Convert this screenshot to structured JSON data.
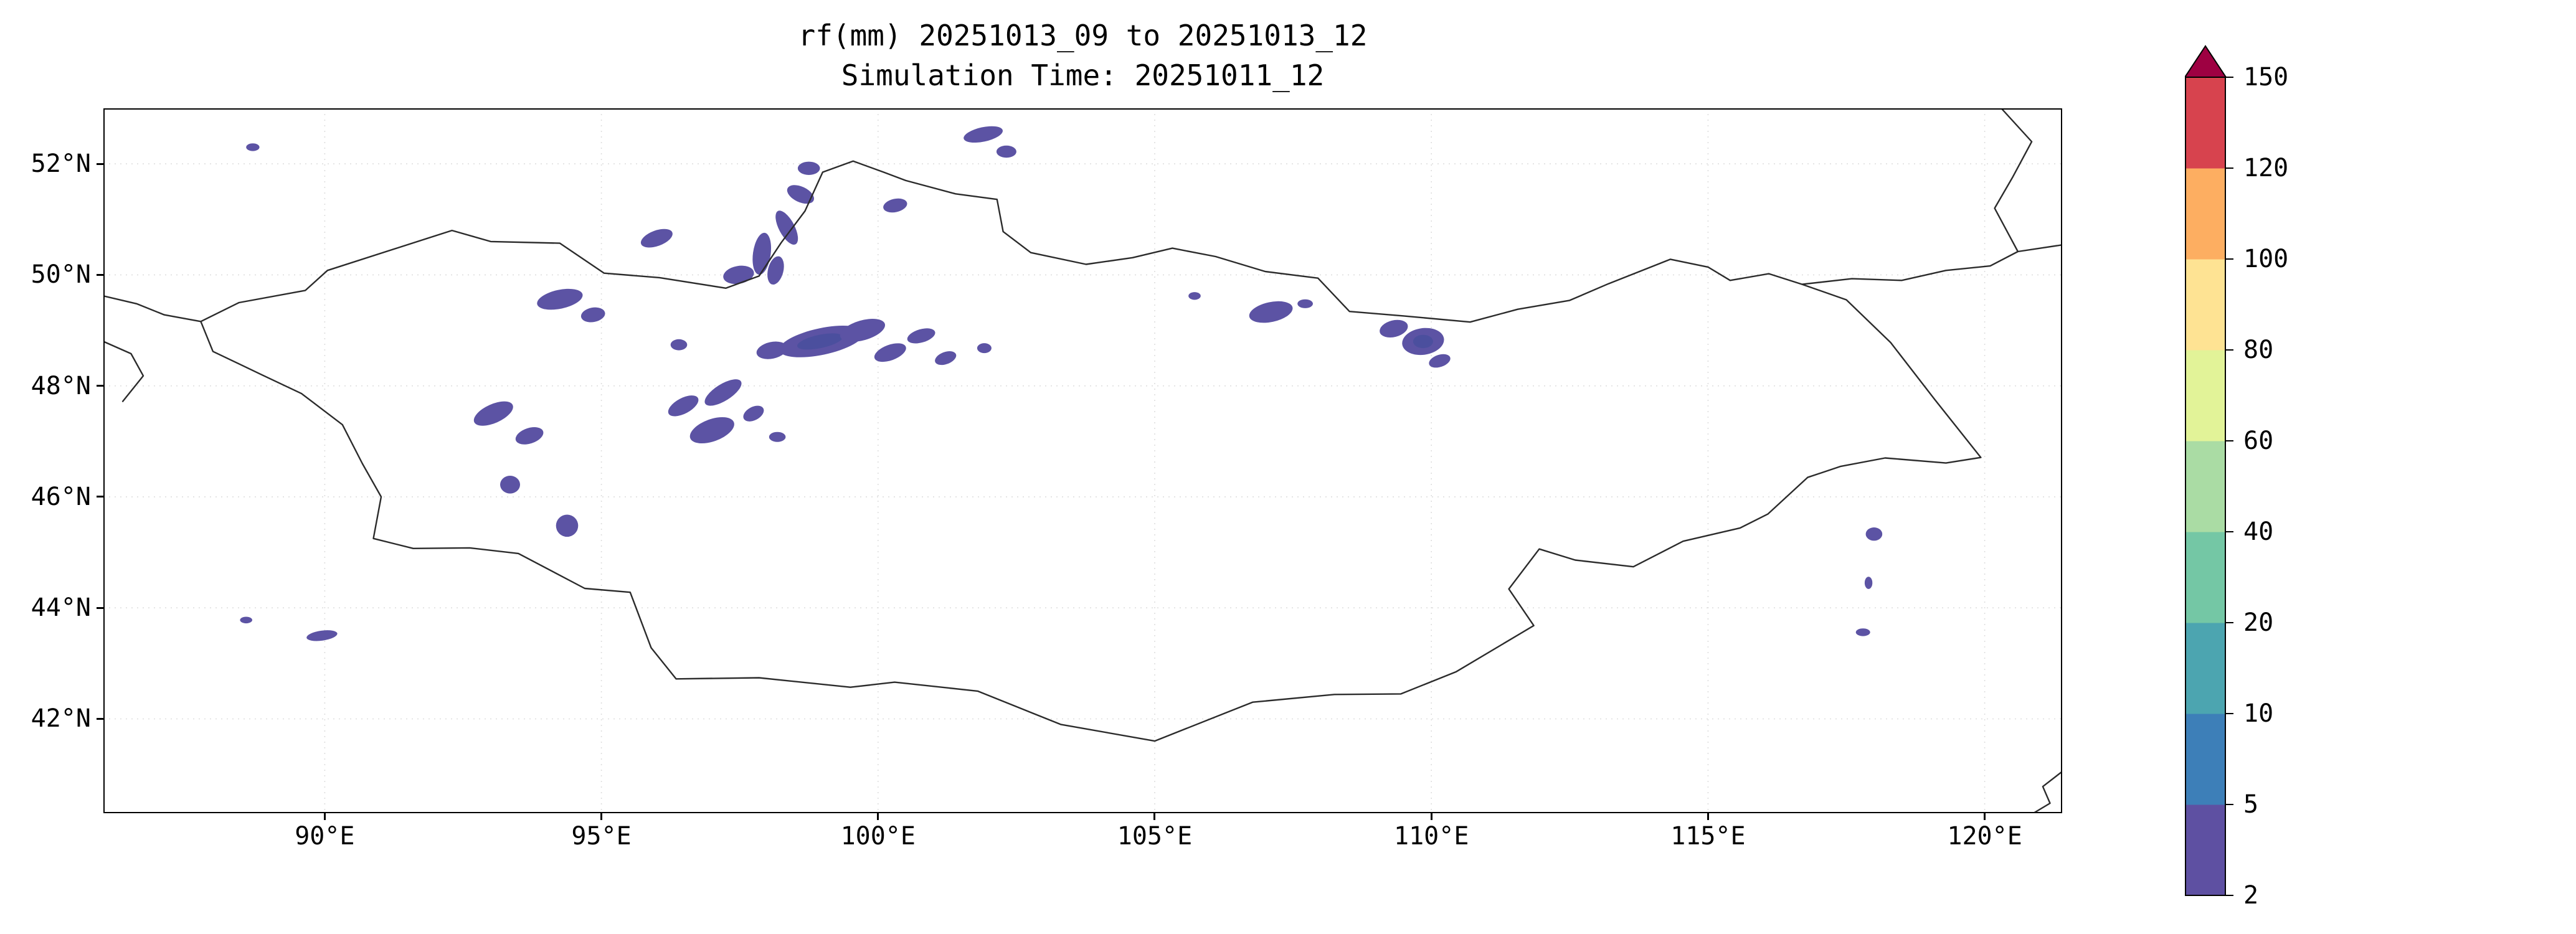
{
  "chart_data": {
    "type": "heatmap",
    "title": "rf(mm) 20251013_09 to 20251013_12",
    "subtitle": "Simulation Time: 20251011_12",
    "grid": true,
    "grid_color": "#dedede",
    "x_axis": {
      "tick_values": [
        90,
        95,
        100,
        105,
        110,
        115,
        120
      ],
      "tick_labels": [
        "90°E",
        "95°E",
        "100°E",
        "105°E",
        "110°E",
        "115°E",
        "120°E"
      ]
    },
    "y_axis": {
      "tick_values": [
        52,
        50,
        48,
        46,
        44,
        42
      ],
      "tick_labels": [
        "52°N",
        "50°N",
        "48°N",
        "46°N",
        "44°N",
        "42°N"
      ]
    },
    "extent": {
      "lon_min": 86.0,
      "lon_max": 121.4,
      "lat_min": 40.3,
      "lat_max": 53.0
    },
    "colorbar": {
      "orientation": "vertical",
      "extend": "max",
      "levels": [
        2,
        5,
        10,
        20,
        40,
        60,
        80,
        100,
        120,
        150
      ],
      "tick_labels": [
        "2",
        "5",
        "10",
        "20",
        "40",
        "60",
        "80",
        "100",
        "120",
        "150"
      ],
      "segment_colors": [
        "#5e50a2",
        "#3d7fb8",
        "#4ca5b0",
        "#74c7a5",
        "#aadca4",
        "#e2f398",
        "#fee393",
        "#fdae61",
        "#d7434e"
      ],
      "over_color": "#9e0142"
    },
    "map": {
      "border_color": "#2b2b2b",
      "patch_color": "#5c53a4",
      "borders": [
        {
          "name": "mongolia",
          "closed": true,
          "points": [
            [
              87.76,
              49.16
            ],
            [
              88.45,
              49.5
            ],
            [
              89.65,
              49.72
            ],
            [
              90.05,
              50.08
            ],
            [
              91.3,
              50.48
            ],
            [
              92.3,
              50.8
            ],
            [
              93.0,
              50.6
            ],
            [
              94.25,
              50.57
            ],
            [
              95.05,
              50.03
            ],
            [
              96.05,
              49.95
            ],
            [
              97.25,
              49.76
            ],
            [
              97.85,
              49.98
            ],
            [
              98.25,
              50.58
            ],
            [
              98.68,
              51.15
            ],
            [
              99.0,
              51.85
            ],
            [
              99.55,
              52.05
            ],
            [
              100.1,
              51.85
            ],
            [
              100.5,
              51.7
            ],
            [
              101.4,
              51.46
            ],
            [
              102.15,
              51.36
            ],
            [
              102.26,
              50.78
            ],
            [
              102.76,
              50.4
            ],
            [
              103.76,
              50.19
            ],
            [
              104.6,
              50.31
            ],
            [
              105.32,
              50.48
            ],
            [
              106.1,
              50.33
            ],
            [
              107.0,
              50.06
            ],
            [
              107.95,
              49.94
            ],
            [
              108.52,
              49.34
            ],
            [
              109.5,
              49.26
            ],
            [
              110.7,
              49.15
            ],
            [
              111.56,
              49.38
            ],
            [
              112.5,
              49.54
            ],
            [
              113.2,
              49.84
            ],
            [
              114.32,
              50.28
            ],
            [
              115.0,
              50.14
            ],
            [
              115.4,
              49.9
            ],
            [
              116.1,
              50.02
            ],
            [
              116.7,
              49.83
            ],
            [
              117.5,
              49.55
            ],
            [
              118.3,
              48.78
            ],
            [
              119.1,
              47.75
            ],
            [
              119.93,
              46.71
            ],
            [
              119.3,
              46.61
            ],
            [
              118.2,
              46.7
            ],
            [
              117.4,
              46.55
            ],
            [
              116.8,
              46.35
            ],
            [
              116.08,
              45.69
            ],
            [
              115.58,
              45.44
            ],
            [
              114.55,
              45.2
            ],
            [
              113.65,
              44.74
            ],
            [
              112.6,
              44.86
            ],
            [
              111.95,
              45.06
            ],
            [
              111.4,
              44.34
            ],
            [
              111.85,
              43.68
            ],
            [
              110.45,
              42.85
            ],
            [
              109.45,
              42.45
            ],
            [
              108.25,
              42.44
            ],
            [
              106.77,
              42.3
            ],
            [
              105.0,
              41.6
            ],
            [
              103.3,
              41.9
            ],
            [
              101.8,
              42.5
            ],
            [
              100.3,
              42.66
            ],
            [
              99.5,
              42.57
            ],
            [
              97.85,
              42.74
            ],
            [
              96.35,
              42.72
            ],
            [
              95.9,
              43.28
            ],
            [
              95.52,
              44.28
            ],
            [
              94.7,
              44.35
            ],
            [
              93.5,
              44.98
            ],
            [
              92.62,
              45.08
            ],
            [
              91.6,
              45.07
            ],
            [
              90.88,
              45.25
            ],
            [
              91.02,
              46.0
            ],
            [
              90.68,
              46.6
            ],
            [
              90.32,
              47.3
            ],
            [
              89.58,
              47.86
            ],
            [
              88.86,
              48.2
            ],
            [
              87.98,
              48.62
            ]
          ]
        },
        {
          "name": "border-west-1",
          "closed": false,
          "points": [
            [
              86.0,
              49.62
            ],
            [
              86.6,
              49.48
            ],
            [
              87.1,
              49.28
            ],
            [
              87.76,
              49.16
            ]
          ]
        },
        {
          "name": "border-west-2",
          "closed": false,
          "points": [
            [
              86.0,
              48.8
            ],
            [
              86.5,
              48.58
            ],
            [
              86.72,
              48.18
            ],
            [
              86.35,
              47.72
            ]
          ]
        },
        {
          "name": "border-northeast",
          "closed": false,
          "points": [
            [
              116.7,
              49.83
            ],
            [
              117.6,
              49.93
            ],
            [
              118.5,
              49.9
            ],
            [
              119.3,
              50.08
            ],
            [
              120.1,
              50.16
            ],
            [
              120.6,
              50.42
            ],
            [
              121.4,
              50.54
            ]
          ]
        },
        {
          "name": "border-top-right",
          "closed": false,
          "points": [
            [
              120.3,
              53.0
            ],
            [
              120.85,
              52.4
            ],
            [
              120.5,
              51.75
            ],
            [
              120.18,
              51.2
            ],
            [
              120.6,
              50.42
            ]
          ]
        },
        {
          "name": "border-bottom-right",
          "closed": false,
          "points": [
            [
              121.4,
              41.05
            ],
            [
              121.05,
              40.78
            ],
            [
              121.18,
              40.48
            ],
            [
              120.88,
              40.3
            ]
          ]
        }
      ],
      "precip_patches": [
        {
          "lon": 88.7,
          "lat": 52.3,
          "rx": 0.12,
          "ry": 0.07,
          "rot": 0
        },
        {
          "lon": 96.0,
          "lat": 50.66,
          "rx": 0.3,
          "ry": 0.14,
          "rot": -20
        },
        {
          "lon": 98.75,
          "lat": 51.92,
          "rx": 0.2,
          "ry": 0.12,
          "rot": 0
        },
        {
          "lon": 98.6,
          "lat": 51.45,
          "rx": 0.26,
          "ry": 0.14,
          "rot": 25
        },
        {
          "lon": 98.35,
          "lat": 50.85,
          "rx": 0.34,
          "ry": 0.14,
          "rot": 62
        },
        {
          "lon": 97.9,
          "lat": 50.38,
          "rx": 0.16,
          "ry": 0.38,
          "rot": 8
        },
        {
          "lon": 98.15,
          "lat": 50.08,
          "rx": 0.14,
          "ry": 0.26,
          "rot": 14
        },
        {
          "lon": 97.48,
          "lat": 50.0,
          "rx": 0.28,
          "ry": 0.16,
          "rot": -10
        },
        {
          "lon": 100.31,
          "lat": 51.25,
          "rx": 0.22,
          "ry": 0.12,
          "rot": -12
        },
        {
          "lon": 101.9,
          "lat": 52.53,
          "rx": 0.36,
          "ry": 0.13,
          "rot": -12
        },
        {
          "lon": 102.32,
          "lat": 52.22,
          "rx": 0.18,
          "ry": 0.11,
          "rot": 0
        },
        {
          "lon": 94.25,
          "lat": 49.56,
          "rx": 0.42,
          "ry": 0.17,
          "rot": -12
        },
        {
          "lon": 94.85,
          "lat": 49.28,
          "rx": 0.22,
          "ry": 0.13,
          "rot": -10
        },
        {
          "lon": 96.4,
          "lat": 48.74,
          "rx": 0.15,
          "ry": 0.1,
          "rot": 0
        },
        {
          "lon": 98.08,
          "lat": 48.64,
          "rx": 0.28,
          "ry": 0.15,
          "rot": -12
        },
        {
          "lon": 98.98,
          "lat": 48.8,
          "rx": 0.78,
          "ry": 0.24,
          "rot": -12
        },
        {
          "lon": 98.95,
          "lat": 48.8,
          "rx": 0.42,
          "ry": 0.12,
          "rot": -12,
          "color": "#4b4f9e"
        },
        {
          "lon": 99.72,
          "lat": 49.0,
          "rx": 0.42,
          "ry": 0.18,
          "rot": -16
        },
        {
          "lon": 100.22,
          "lat": 48.6,
          "rx": 0.3,
          "ry": 0.14,
          "rot": -20
        },
        {
          "lon": 100.78,
          "lat": 48.9,
          "rx": 0.26,
          "ry": 0.12,
          "rot": -16
        },
        {
          "lon": 101.22,
          "lat": 48.5,
          "rx": 0.2,
          "ry": 0.11,
          "rot": -20
        },
        {
          "lon": 101.92,
          "lat": 48.68,
          "rx": 0.13,
          "ry": 0.09,
          "rot": 0
        },
        {
          "lon": 93.05,
          "lat": 47.5,
          "rx": 0.38,
          "ry": 0.17,
          "rot": -24
        },
        {
          "lon": 93.7,
          "lat": 47.1,
          "rx": 0.26,
          "ry": 0.14,
          "rot": -18
        },
        {
          "lon": 96.48,
          "lat": 47.64,
          "rx": 0.3,
          "ry": 0.14,
          "rot": -28
        },
        {
          "lon": 97.2,
          "lat": 47.88,
          "rx": 0.38,
          "ry": 0.15,
          "rot": -32
        },
        {
          "lon": 97.0,
          "lat": 47.2,
          "rx": 0.42,
          "ry": 0.2,
          "rot": -20
        },
        {
          "lon": 97.75,
          "lat": 47.5,
          "rx": 0.2,
          "ry": 0.12,
          "rot": -28
        },
        {
          "lon": 98.18,
          "lat": 47.08,
          "rx": 0.15,
          "ry": 0.09,
          "rot": 0
        },
        {
          "lon": 93.35,
          "lat": 46.22,
          "rx": 0.18,
          "ry": 0.16,
          "rot": 0
        },
        {
          "lon": 94.38,
          "lat": 45.48,
          "rx": 0.2,
          "ry": 0.2,
          "rot": 0
        },
        {
          "lon": 88.58,
          "lat": 43.78,
          "rx": 0.11,
          "ry": 0.06,
          "rot": 0
        },
        {
          "lon": 89.95,
          "lat": 43.5,
          "rx": 0.28,
          "ry": 0.09,
          "rot": -8
        },
        {
          "lon": 105.72,
          "lat": 49.62,
          "rx": 0.11,
          "ry": 0.07,
          "rot": 0
        },
        {
          "lon": 107.1,
          "lat": 49.33,
          "rx": 0.4,
          "ry": 0.18,
          "rot": -12
        },
        {
          "lon": 107.72,
          "lat": 49.48,
          "rx": 0.14,
          "ry": 0.08,
          "rot": 0
        },
        {
          "lon": 109.32,
          "lat": 49.03,
          "rx": 0.26,
          "ry": 0.15,
          "rot": -14
        },
        {
          "lon": 109.85,
          "lat": 48.8,
          "rx": 0.38,
          "ry": 0.24,
          "rot": -8
        },
        {
          "lon": 109.85,
          "lat": 48.8,
          "rx": 0.18,
          "ry": 0.12,
          "rot": 0,
          "color": "#4b4f9e"
        },
        {
          "lon": 110.15,
          "lat": 48.45,
          "rx": 0.2,
          "ry": 0.11,
          "rot": -18
        },
        {
          "lon": 118.0,
          "lat": 45.33,
          "rx": 0.15,
          "ry": 0.12,
          "rot": 0
        },
        {
          "lon": 117.9,
          "lat": 44.45,
          "rx": 0.07,
          "ry": 0.11,
          "rot": 0
        },
        {
          "lon": 117.8,
          "lat": 43.56,
          "rx": 0.13,
          "ry": 0.07,
          "rot": 0
        }
      ]
    }
  }
}
